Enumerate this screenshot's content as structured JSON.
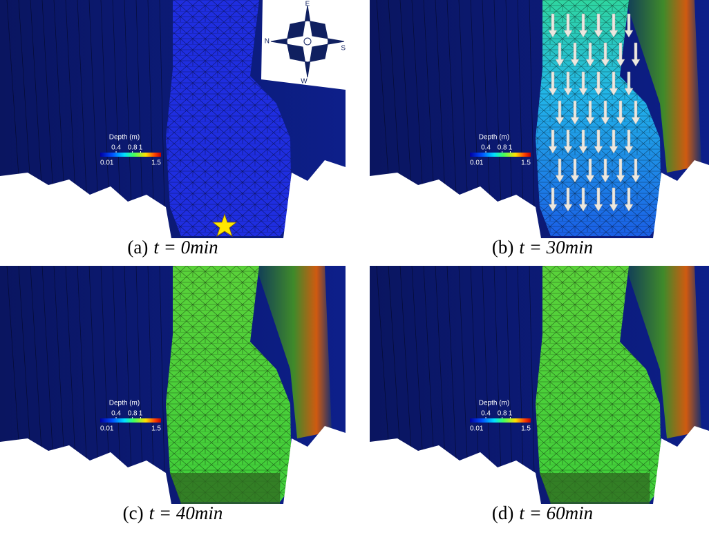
{
  "panels": [
    {
      "caption": {
        "label": "(a)",
        "math": "t = 0min"
      },
      "legend": {
        "title": "Depth (m)",
        "ticks_top": [
          0.4,
          0.8,
          1
        ],
        "min": 0.01,
        "max": 1.5
      },
      "compass": {
        "top": "E",
        "left": "N",
        "right": "S",
        "bottom": "W"
      }
    },
    {
      "caption": {
        "label": "(b)",
        "math": "t = 30min"
      },
      "legend": {
        "title": "Depth (m)",
        "ticks_top": [
          0.4,
          0.8,
          1
        ],
        "min": 0.01,
        "max": 1.5
      }
    },
    {
      "caption": {
        "label": "(c)",
        "math": "t = 40min"
      },
      "legend": {
        "title": "Depth (m)",
        "ticks_top": [
          0.4,
          0.8,
          1
        ],
        "min": 0.01,
        "max": 1.5
      }
    },
    {
      "caption": {
        "label": "(d)",
        "math": "t = 60min"
      },
      "legend": {
        "title": "Depth (m)",
        "ticks_top": [
          0.4,
          0.8,
          1
        ],
        "min": 0.01,
        "max": 1.5
      }
    }
  ]
}
